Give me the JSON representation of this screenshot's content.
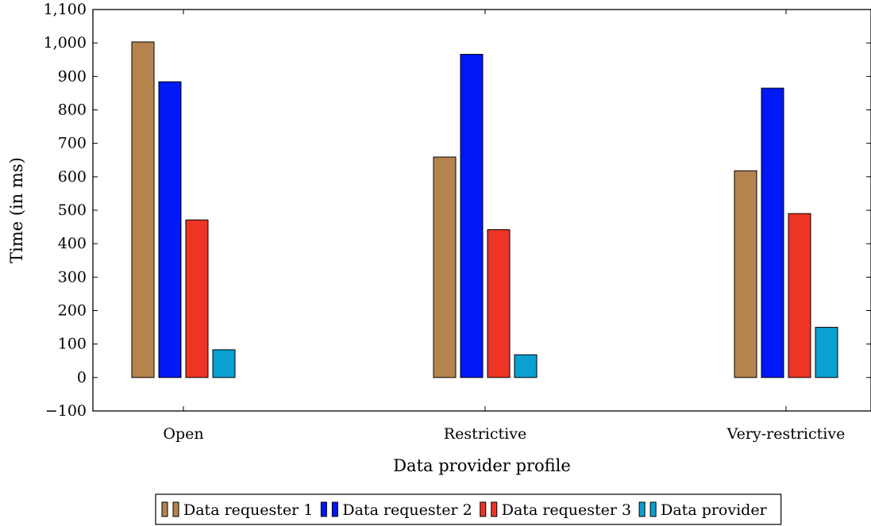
{
  "chart_data": {
    "type": "bar",
    "categories": [
      "Open",
      "Restrictive",
      "Very-restrictive"
    ],
    "series": [
      {
        "name": "Data requester 1",
        "color": "#b5844e",
        "values": [
          1003,
          659,
          618
        ]
      },
      {
        "name": "Data requester 2",
        "color": "#0018f5",
        "values": [
          884,
          966,
          865
        ]
      },
      {
        "name": "Data requester 3",
        "color": "#ee3425",
        "values": [
          471,
          442,
          490
        ]
      },
      {
        "name": "Data provider",
        "color": "#0aa0d2",
        "values": [
          83,
          68,
          150
        ]
      }
    ],
    "xlabel": "Data provider profile",
    "ylabel": "Time (in ms)",
    "ylim": [
      -100,
      1100
    ],
    "yticks": [
      -100,
      0,
      100,
      200,
      300,
      400,
      500,
      600,
      700,
      800,
      900,
      1000,
      1100
    ],
    "ytick_labels": [
      "−100",
      "0",
      "100",
      "200",
      "300",
      "400",
      "500",
      "600",
      "700",
      "800",
      "900",
      "1,000",
      "1,100"
    ],
    "grid": false,
    "legend_position": "bottom"
  }
}
